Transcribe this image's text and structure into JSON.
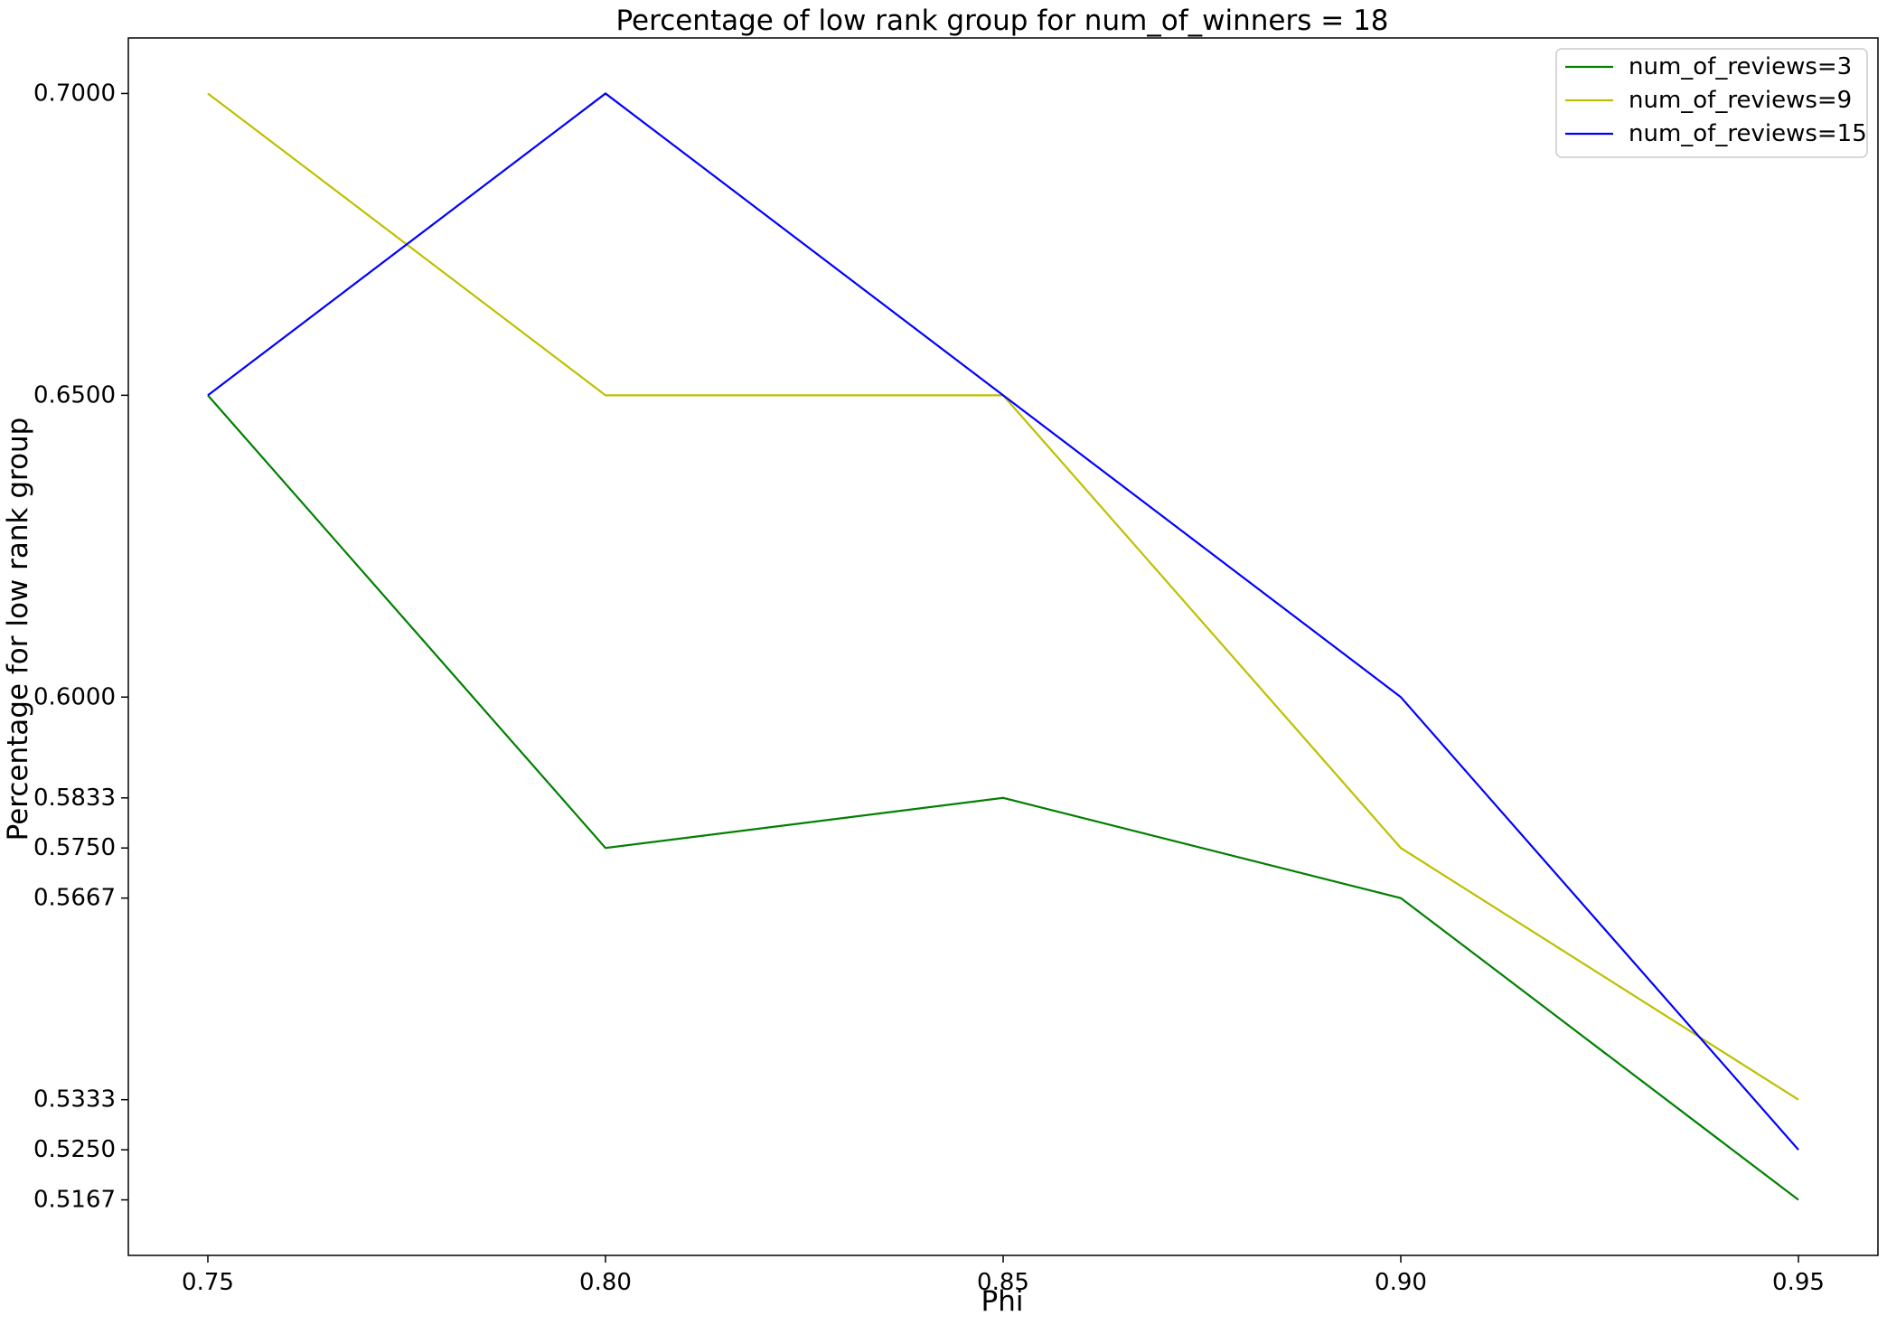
{
  "chart_data": {
    "type": "line",
    "title": "Percentage of low rank group for num_of_winners = 18",
    "xlabel": "Phi",
    "ylabel": "Percentage for low rank group",
    "x": [
      0.75,
      0.8,
      0.85,
      0.9,
      0.95
    ],
    "x_tick_labels": [
      "0.75",
      "0.80",
      "0.85",
      "0.90",
      "0.95"
    ],
    "xlim": [
      0.74,
      0.96
    ],
    "y_ticks": [
      0.7,
      0.65,
      0.6,
      0.5833,
      0.575,
      0.5667,
      0.5333,
      0.525,
      0.5167
    ],
    "y_tick_labels": [
      "0.7000",
      "0.6500",
      "0.6000",
      "0.5833",
      "0.5750",
      "0.5667",
      "0.5333",
      "0.5250",
      "0.5167"
    ],
    "ylim": [
      0.5075,
      0.7092
    ],
    "grid": false,
    "legend_position": "top-right",
    "series": [
      {
        "name": "num_of_reviews=3",
        "color": "#008000",
        "values": [
          0.65,
          0.575,
          0.5833,
          0.5667,
          0.5167
        ]
      },
      {
        "name": "num_of_reviews=9",
        "color": "#bfbf00",
        "values": [
          0.7,
          0.65,
          0.65,
          0.575,
          0.5333
        ]
      },
      {
        "name": "num_of_reviews=15",
        "color": "#0000ff",
        "values": [
          0.65,
          0.7,
          0.65,
          0.6,
          0.525
        ]
      }
    ]
  }
}
